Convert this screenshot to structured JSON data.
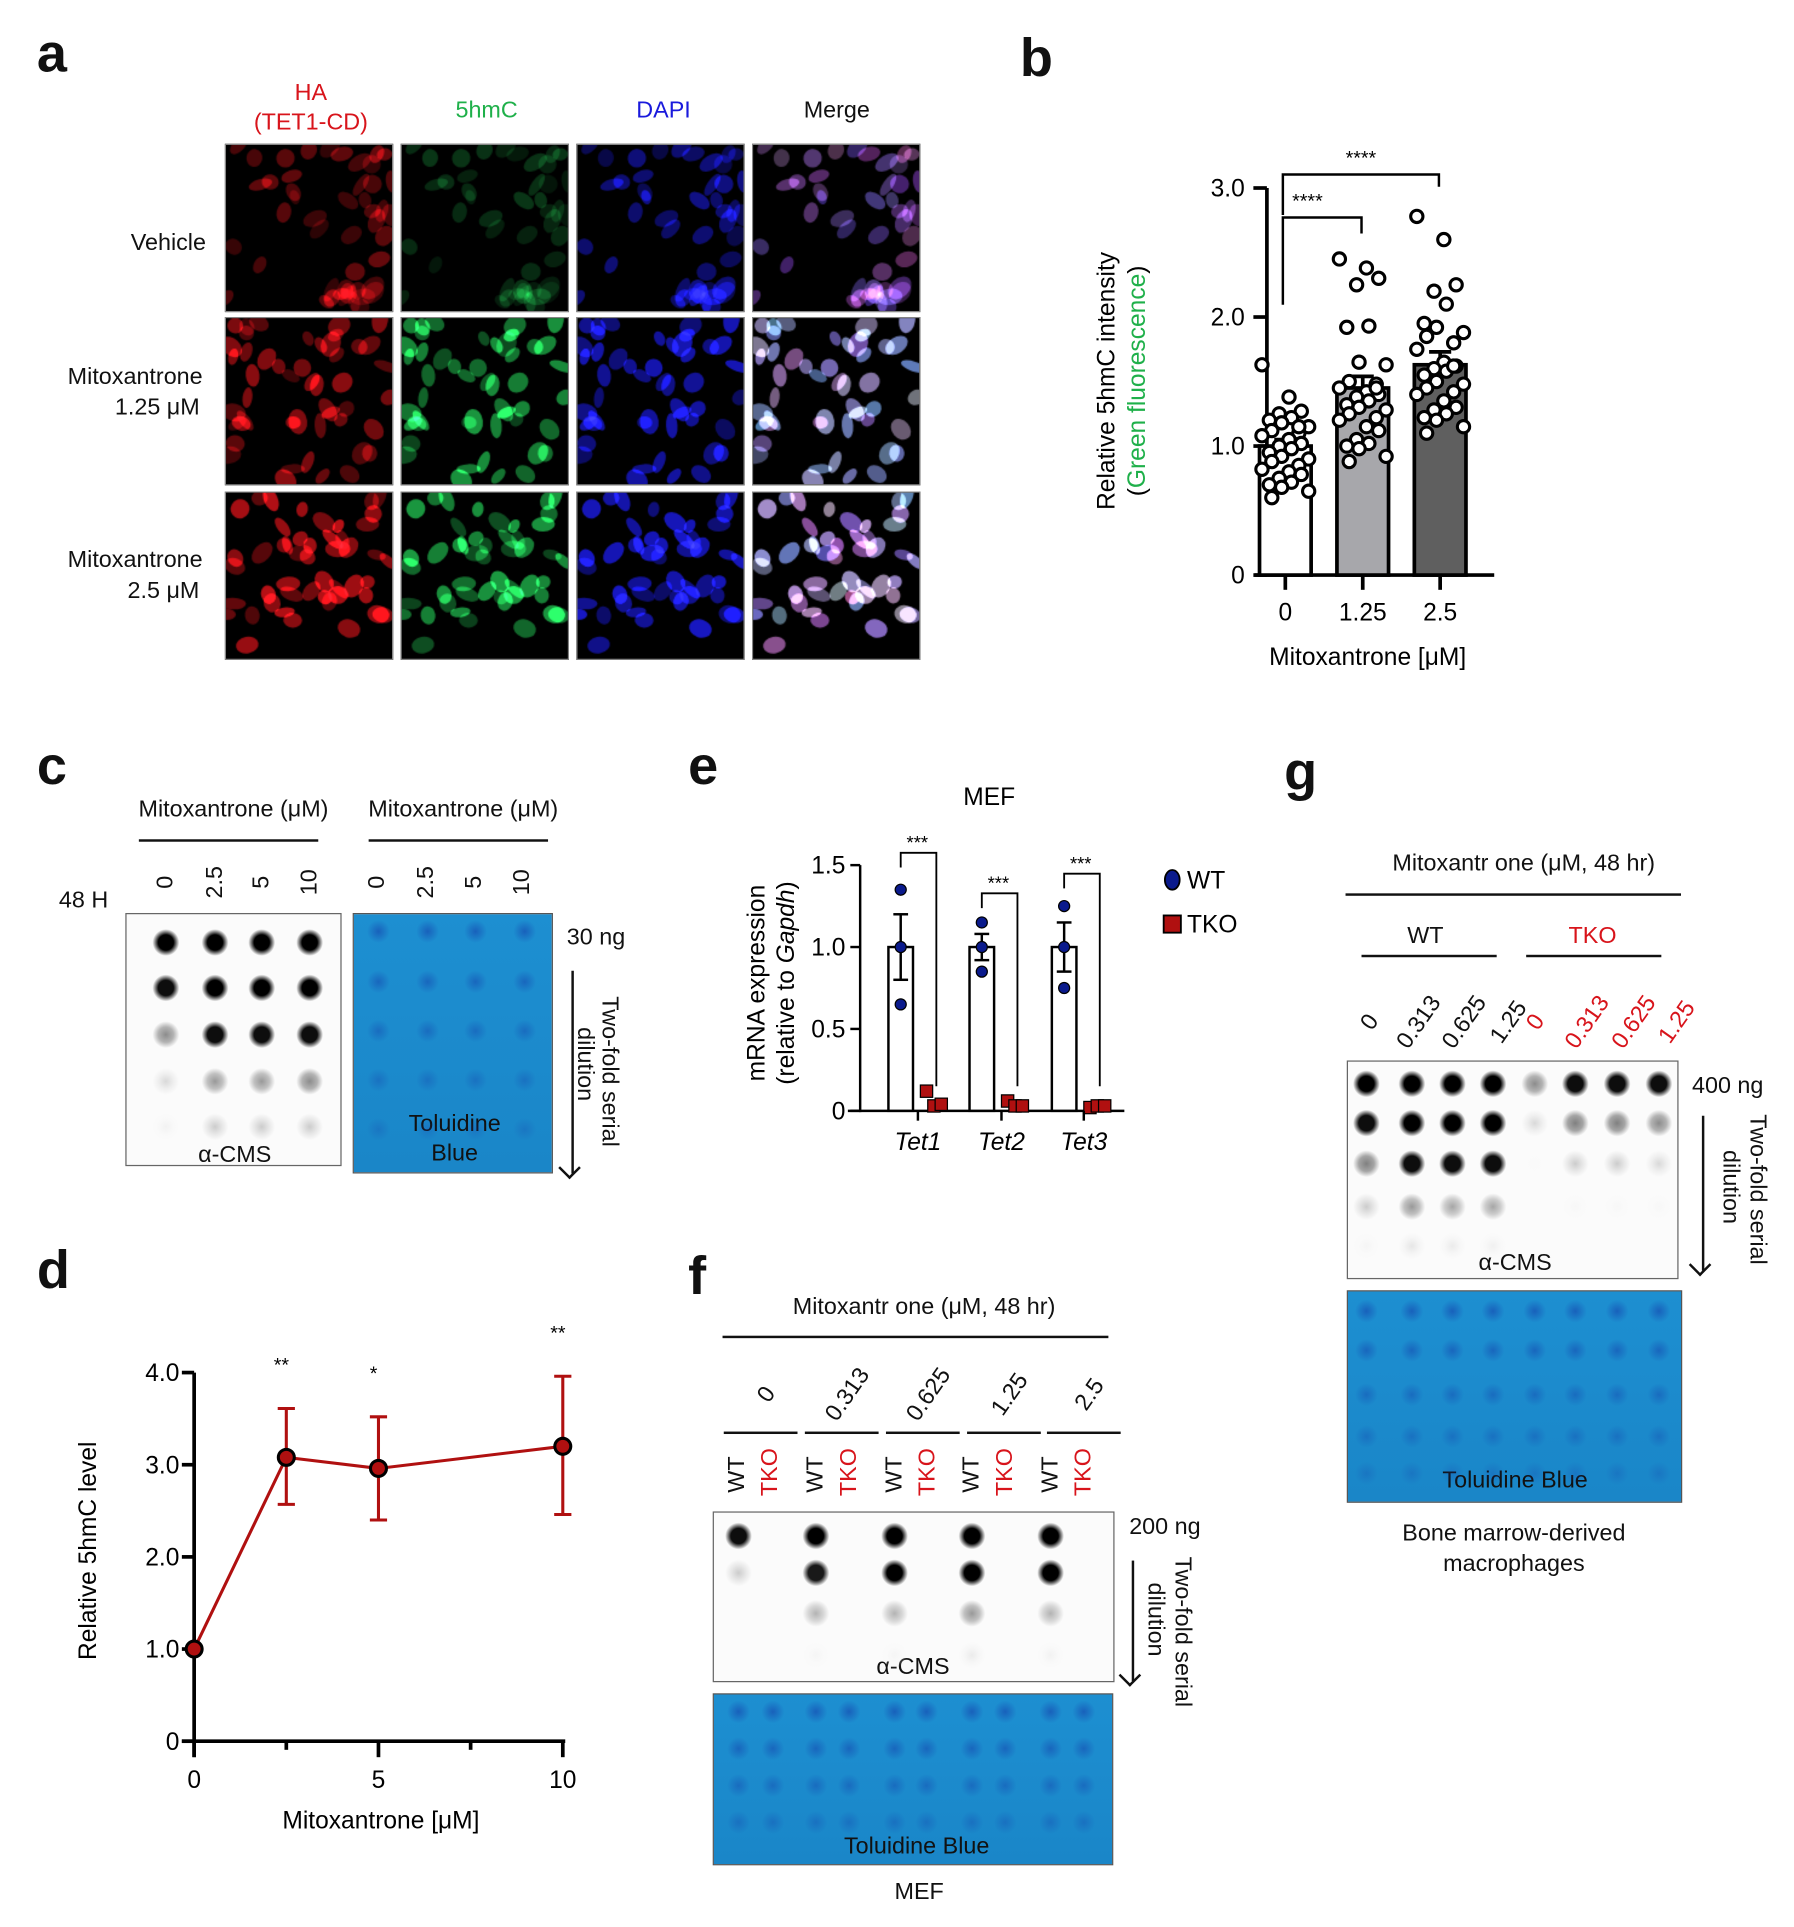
{
  "panel_a": {
    "letter": "a",
    "ha_line1": "HA",
    "ha_line2": "(TET1-CD)",
    "ch_5hmc": "5hmC",
    "ch_dapi": "DAPI",
    "ch_merge": "Merge",
    "rows": [
      {
        "line1": "Vehicle",
        "line2": ""
      },
      {
        "line1": "Mitoxantrone",
        "line2": "1.25  μM"
      },
      {
        "line1": "Mitoxantrone",
        "line2": "2.5  μM"
      }
    ],
    "colors": {
      "ha": "#e8141b",
      "5hmc": "#1fb04a",
      "dapi": "#1a1adc"
    },
    "channel_level": {
      "ha": [
        0.45,
        0.6,
        0.8
      ],
      "5hmc": [
        0.3,
        0.85,
        0.9
      ],
      "dapi": [
        0.6,
        0.85,
        0.9
      ]
    }
  },
  "panel_b": {
    "letter": "b"
  },
  "panel_c": {
    "letter": "c",
    "header_left": "Mitoxantrone  (μM)",
    "header_right": "Mitoxantrone  (μM)",
    "time": "48 H",
    "doses": [
      "0",
      "2.5",
      "5",
      "10"
    ],
    "amount": "30  ng",
    "blot_label": "α-CMS",
    "stain_line1": "Toluidine",
    "stain_line2": "Blue",
    "dilution_line1": "Two-fold serial",
    "dilution_line2": "dilution",
    "dot_intensity": [
      [
        1,
        1,
        1,
        1
      ],
      [
        0.95,
        1,
        1,
        1
      ],
      [
        0.45,
        0.95,
        0.95,
        0.95
      ],
      [
        0.15,
        0.4,
        0.4,
        0.45
      ],
      [
        0.05,
        0.2,
        0.2,
        0.2
      ]
    ]
  },
  "panel_d": {
    "letter": "d"
  },
  "panel_e": {
    "letter": "e"
  },
  "panel_f": {
    "letter": "f",
    "header": "Mitoxantr one (μM, 48 hr)",
    "doses": [
      "0",
      "0.313",
      "0.625",
      "1.25",
      "2.5"
    ],
    "genotypes": [
      "WT",
      "TKO"
    ],
    "amount": "200  ng",
    "blot_label": "α-CMS",
    "stain_label": "Toluidine  Blue",
    "dilution_line1": "Two-fold serial",
    "dilution_line2": "dilution",
    "caption": "MEF",
    "dot_intensity": [
      [
        0.95,
        0,
        1,
        0,
        1,
        0,
        1,
        0,
        1,
        0
      ],
      [
        0.2,
        0,
        0.9,
        0,
        1,
        0,
        1,
        0,
        1,
        0
      ],
      [
        0,
        0,
        0.3,
        0,
        0.3,
        0,
        0.4,
        0,
        0.3,
        0
      ],
      [
        0,
        0,
        0.04,
        0,
        0.04,
        0,
        0.08,
        0,
        0.05,
        0
      ]
    ]
  },
  "panel_g": {
    "letter": "g",
    "header": "Mitoxantr one (μM, 48 hr)",
    "wt_label": "WT",
    "tko_label": "TKO",
    "doses": [
      "0",
      "0.313",
      "0.625",
      "1.25"
    ],
    "amount": "400  ng",
    "blot_label": "α-CMS",
    "stain_label": "Toluidine  Blue",
    "dilution_line1": "Two-fold serial",
    "dilution_line2": "dilution",
    "caption_line1": "Bone  marrow-derived",
    "caption_line2": "macrophages",
    "dot_intensity": [
      [
        1,
        1,
        1,
        1,
        0.45,
        0.95,
        0.95,
        0.95
      ],
      [
        0.95,
        1,
        1,
        1,
        0.15,
        0.5,
        0.5,
        0.45
      ],
      [
        0.5,
        0.95,
        0.95,
        0.95,
        0.02,
        0.2,
        0.2,
        0.15
      ],
      [
        0.2,
        0.4,
        0.35,
        0.35,
        0,
        0.03,
        0.03,
        0.03
      ],
      [
        0.04,
        0.1,
        0.08,
        0.06,
        0,
        0,
        0,
        0
      ]
    ]
  },
  "chart_data": [
    {
      "panel": "b",
      "type": "bar",
      "categories": [
        "0",
        "1.25",
        "2.5"
      ],
      "values": [
        1.0,
        1.45,
        1.63
      ],
      "errors": [
        0.05,
        0.09,
        0.1
      ],
      "points": [
        [
          1.63,
          1.38,
          1.27,
          1.25,
          1.22,
          1.2,
          1.18,
          1.15,
          1.12,
          1.1,
          1.08,
          1.05,
          1.02,
          1.0,
          0.98,
          0.95,
          0.92,
          0.9,
          0.88,
          0.85,
          0.82,
          0.8,
          0.78,
          0.75,
          0.72,
          0.7,
          0.68,
          0.65,
          0.6,
          1.15
        ],
        [
          2.45,
          2.38,
          2.3,
          2.25,
          1.93,
          1.92,
          1.65,
          1.63,
          1.5,
          1.48,
          1.45,
          1.42,
          1.4,
          1.38,
          1.35,
          1.32,
          1.3,
          1.28,
          1.25,
          1.22,
          1.2,
          1.15,
          1.12,
          1.05,
          1.02,
          1.0,
          0.98,
          0.92,
          0.88,
          1.45
        ],
        [
          2.78,
          2.6,
          2.25,
          2.2,
          2.1,
          1.95,
          1.92,
          1.88,
          1.85,
          1.8,
          1.75,
          1.65,
          1.62,
          1.6,
          1.58,
          1.55,
          1.5,
          1.48,
          1.45,
          1.42,
          1.4,
          1.35,
          1.3,
          1.28,
          1.25,
          1.22,
          1.2,
          1.15,
          1.1,
          1.62
        ]
      ],
      "bar_colors": [
        "#ffffff",
        "#a7a7ab",
        "#5f5f5f"
      ],
      "ylim": [
        0,
        3
      ],
      "yticks": [
        {
          "value": 0,
          "label": "0"
        },
        {
          "value": 1,
          "label": "1.0"
        },
        {
          "value": 2,
          "label": "2.0"
        },
        {
          "value": 3,
          "label": "3.0"
        }
      ],
      "ylabel": "Relative 5hmC intensity",
      "ylabel2_prefix": "(",
      "ylabel2": "Green fluorescence",
      "ylabel2_suffix": ")",
      "ylabel2_color": "#1fb04a",
      "xlabel": "Mitoxantrone  [μM]",
      "significance": [
        {
          "from": 0,
          "to": 1,
          "label": "****"
        },
        {
          "from": 0,
          "to": 2,
          "label": "****"
        }
      ]
    },
    {
      "panel": "d",
      "type": "line",
      "x": [
        0,
        2.5,
        5,
        10
      ],
      "y": [
        1.0,
        3.08,
        2.96,
        3.2
      ],
      "err_low": [
        1.0,
        2.57,
        2.4,
        2.46
      ],
      "err_high": [
        1.0,
        3.61,
        3.52,
        3.96
      ],
      "significance": [
        "",
        "**",
        "*",
        "**"
      ],
      "color": "#b01010",
      "xlim": [
        0,
        10
      ],
      "ylim": [
        0,
        4
      ],
      "xticks": [
        {
          "value": 0,
          "label": "0"
        },
        {
          "value": 2.5,
          "label": ""
        },
        {
          "value": 5,
          "label": "5"
        },
        {
          "value": 7.5,
          "label": ""
        },
        {
          "value": 10,
          "label": "10"
        }
      ],
      "yticks": [
        {
          "value": 0,
          "label": "0"
        },
        {
          "value": 1,
          "label": "1.0"
        },
        {
          "value": 2,
          "label": "2.0"
        },
        {
          "value": 3,
          "label": "3.0"
        },
        {
          "value": 4,
          "label": "4.0"
        }
      ],
      "ylabel": "Relative 5hmC level",
      "xlabel": "Mitoxantrone  [μM]"
    },
    {
      "panel": "e",
      "type": "bar",
      "title": "MEF",
      "categories": [
        "Tet1",
        "Tet2",
        "Tet3"
      ],
      "series": [
        {
          "name": "WT",
          "values": [
            1.0,
            1.0,
            1.0
          ],
          "errors": [
            0.2,
            0.08,
            0.15
          ],
          "points": [
            [
              1.35,
              1.0,
              0.65
            ],
            [
              1.15,
              1.0,
              0.85
            ],
            [
              1.25,
              1.0,
              0.75
            ]
          ],
          "color": "#0a1a8c"
        },
        {
          "name": "TKO",
          "values": [
            0.06,
            0.04,
            0.03
          ],
          "errors": [
            0,
            0,
            0
          ],
          "points": [
            [
              0.12,
              0.03,
              0.04
            ],
            [
              0.06,
              0.03,
              0.03
            ],
            [
              0.02,
              0.03,
              0.03
            ]
          ],
          "color": "#b01010"
        }
      ],
      "ylim": [
        0,
        1.5
      ],
      "yticks": [
        {
          "value": 0,
          "label": "0"
        },
        {
          "value": 0.5,
          "label": "0.5"
        },
        {
          "value": 1,
          "label": "1.0"
        },
        {
          "value": 1.5,
          "label": "1.5"
        }
      ],
      "ylabel": "mRNA expression",
      "ylabel2_prefix": "(relative to ",
      "ylabel2_italic": "Gapdh",
      "ylabel2_suffix": ")",
      "significance": [
        "***",
        "***",
        "***"
      ],
      "legend": "right"
    }
  ]
}
